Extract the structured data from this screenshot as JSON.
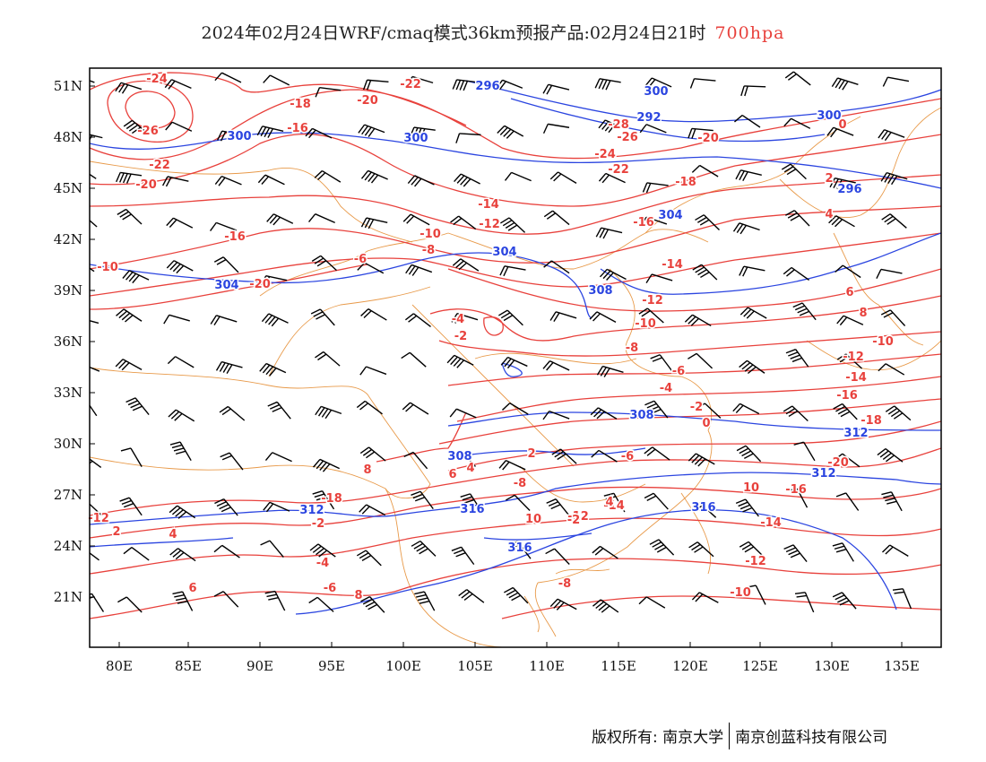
{
  "title": {
    "main": "2024年02月24日WRF/cmaq模式36km预报产品:02月24日21时",
    "level": "700hpa"
  },
  "footer": {
    "copyright_label": "版权所有:",
    "org1": "南京大学",
    "org2": "南京创蓝科技有限公司"
  },
  "map": {
    "lon_labels": [
      "80E",
      "85E",
      "90E",
      "95E",
      "100E",
      "105E",
      "110E",
      "115E",
      "120E",
      "125E",
      "130E",
      "135E"
    ],
    "lat_labels": [
      "51N",
      "48N",
      "45N",
      "42N",
      "39N",
      "36N",
      "33N",
      "30N",
      "27N",
      "24N",
      "21N"
    ],
    "temperature_labels": [
      "-24",
      "-26",
      "-22",
      "-20",
      "-18",
      "-16",
      "-20",
      "-22",
      "-28",
      "-26",
      "-24",
      "-22",
      "-20",
      "-18",
      "-16",
      "-14",
      "-12",
      "-10",
      "-8",
      "-6",
      "-4",
      "-2",
      "0",
      "2",
      "4",
      "6",
      "8",
      "10",
      "-12",
      "-14",
      "-18",
      "-20",
      "-16",
      "-14",
      "-12",
      "-10",
      "-8",
      "-6",
      "-4",
      "-2",
      "0",
      "2",
      "4",
      "6",
      "8",
      "-10",
      "-12",
      "-14",
      "-16",
      "-18",
      "-20",
      "-16",
      "-14",
      "-12",
      "-10",
      "-8",
      "-6",
      "-4",
      "-2",
      "2",
      "4",
      "6",
      "8",
      "10",
      "-10",
      "-12",
      "-2",
      "4",
      "-6",
      "-8"
    ],
    "height_labels": [
      "296",
      "300",
      "292",
      "300",
      "300",
      "296",
      "300",
      "304",
      "304",
      "304",
      "308",
      "308",
      "308",
      "312",
      "312",
      "312",
      "316",
      "316",
      "316"
    ],
    "colors": {
      "temperature": "#e8413c",
      "height": "#2b45e0",
      "coastline": "#e89a4a",
      "wind": "#000000"
    }
  }
}
